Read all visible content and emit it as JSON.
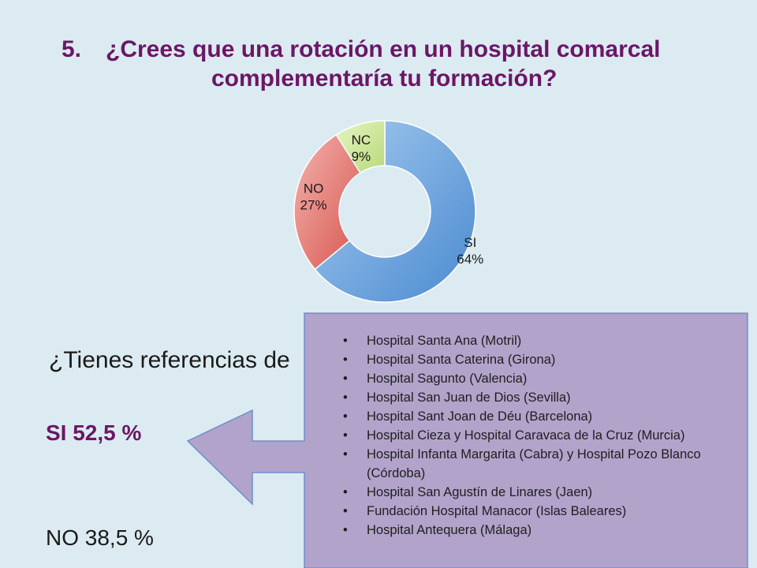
{
  "title": {
    "number": "5.",
    "line1": "¿Crees que una rotación en un hospital comarcal",
    "line2": "complementaría tu formación?"
  },
  "chart_data": {
    "type": "pie",
    "donut": true,
    "categories": [
      "SI",
      "NO",
      "NC"
    ],
    "values": [
      64,
      27,
      9
    ],
    "labels": [
      "64%",
      "27%",
      "9%"
    ],
    "colors": [
      "#5b9bd5",
      "#e06660",
      "#c6e48a"
    ]
  },
  "question": "¿Tienes referencias de",
  "si_stat": "SI  52,5 %",
  "no_stat": "NO 38,5 %",
  "hospitals": [
    "Hospital Santa Ana (Motril)",
    "Hospital Santa Caterina (Girona)",
    "Hospital Sagunto (Valencia)",
    "Hospital San Juan de Dios (Sevilla)",
    "Hospital Sant Joan de Déu (Barcelona)",
    "Hospital Cieza y Hospital Caravaca de la Cruz (Murcia)",
    "Hospital Infanta Margarita (Cabra) y Hospital Pozo Blanco (Córdoba)",
    "Hospital San Agustín de Linares (Jaen)",
    "Fundación Hospital Manacor (Islas Baleares)",
    "Hospital Antequera (Málaga)"
  ]
}
